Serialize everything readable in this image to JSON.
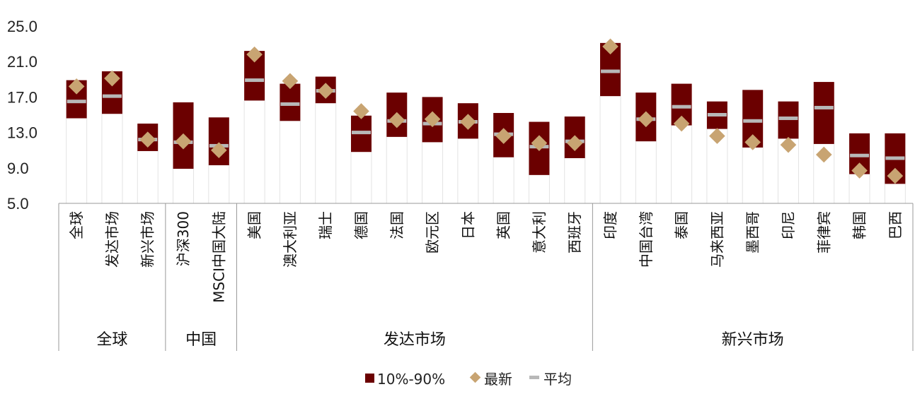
{
  "chart_data": {
    "type": "range-bar",
    "ylim": [
      5.0,
      25.0
    ],
    "yticks": [
      "5.0",
      "9.0",
      "13.0",
      "17.0",
      "21.0",
      "25.0"
    ],
    "categories": [
      "全球",
      "发达市场",
      "新兴市场",
      "沪深300",
      "MSCI中国大陆",
      "美国",
      "澳大利亚",
      "瑞士",
      "德国",
      "法国",
      "欧元区",
      "日本",
      "英国",
      "意大利",
      "西班牙",
      "印度",
      "中国台湾",
      "泰国",
      "马来西亚",
      "墨西哥",
      "印尼",
      "菲律宾",
      "韩国",
      "巴西"
    ],
    "groups": [
      {
        "label": "全球",
        "count": 3
      },
      {
        "label": "中国",
        "count": 2
      },
      {
        "label": "发达市场",
        "count": 10
      },
      {
        "label": "新兴市场",
        "count": 9
      }
    ],
    "series": [
      {
        "name": "10%-90%",
        "color": "#6b0000",
        "low": [
          14.6,
          15.1,
          10.9,
          8.9,
          9.3,
          16.6,
          14.3,
          16.3,
          10.8,
          12.5,
          11.9,
          12.3,
          10.2,
          8.2,
          10.1,
          17.1,
          12.0,
          13.8,
          13.4,
          11.3,
          12.3,
          11.7,
          8.3,
          7.2
        ],
        "high": [
          18.9,
          19.9,
          14.0,
          16.4,
          14.7,
          22.2,
          18.5,
          19.3,
          14.9,
          17.5,
          17.0,
          16.3,
          15.2,
          14.2,
          14.8,
          23.1,
          17.5,
          18.5,
          16.5,
          17.8,
          16.5,
          18.7,
          12.9,
          12.9
        ]
      },
      {
        "name": "最新",
        "color": "#c8a472",
        "values": [
          18.2,
          19.1,
          12.2,
          12.0,
          11.0,
          21.8,
          18.8,
          17.7,
          15.4,
          14.4,
          14.5,
          14.2,
          12.6,
          11.8,
          11.8,
          22.7,
          14.5,
          14.0,
          12.6,
          11.9,
          11.6,
          10.5,
          8.7,
          8.1
        ]
      },
      {
        "name": "平均",
        "color": "#b8b8b8",
        "values": [
          16.5,
          17.1,
          12.2,
          11.9,
          11.5,
          18.9,
          16.2,
          17.7,
          13.0,
          14.3,
          14.0,
          14.2,
          12.8,
          11.4,
          12.0,
          19.9,
          14.5,
          15.9,
          15.0,
          14.3,
          14.6,
          15.8,
          10.4,
          10.1
        ]
      }
    ],
    "legend": {
      "position": "bottom",
      "items": [
        "10%-90%",
        "最新",
        "平均"
      ]
    },
    "grid": false
  }
}
